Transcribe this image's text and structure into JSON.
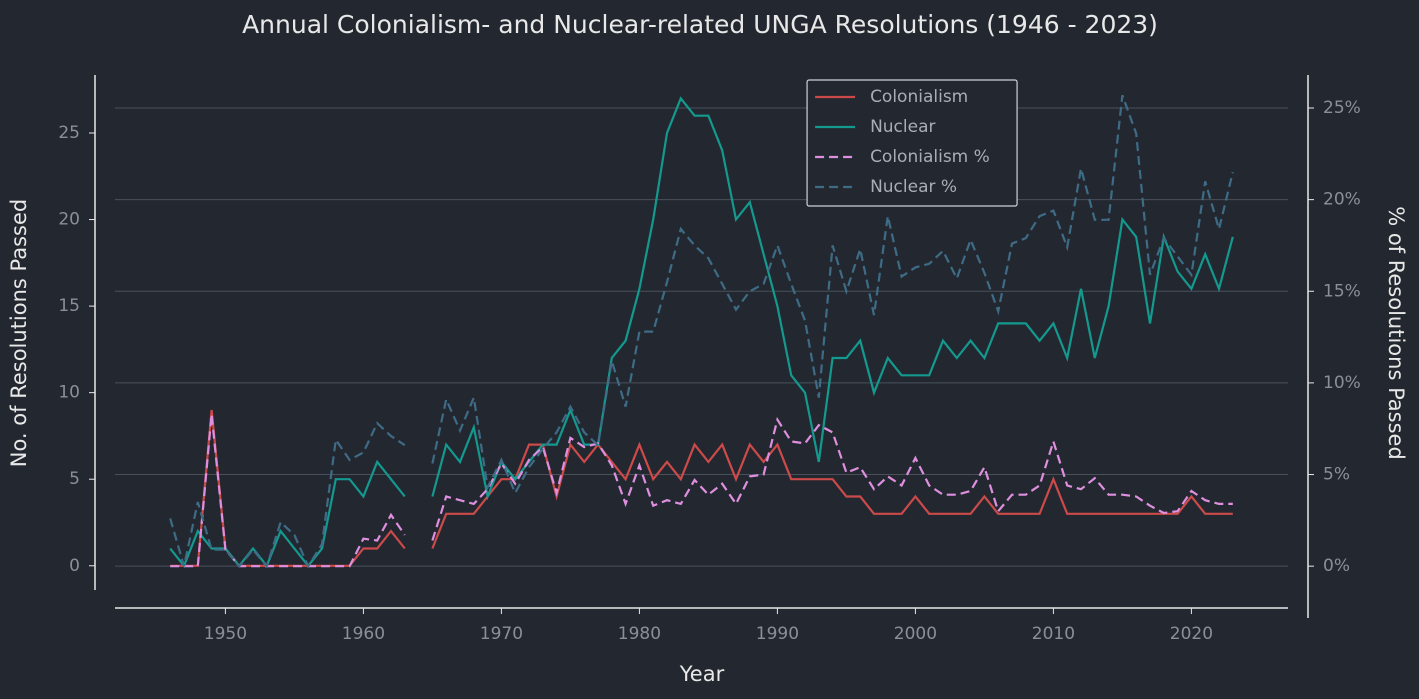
{
  "chart_data": {
    "type": "line",
    "title": "Annual Colonialism- and Nuclear-related UNGA Resolutions (1946 - 2023)",
    "x_label": "Year",
    "y_label": "No. of Resolutions Passed",
    "y2_label": "% of Resolutions Passed",
    "x": [
      1946,
      1947,
      1948,
      1949,
      1950,
      1951,
      1952,
      1953,
      1954,
      1955,
      1956,
      1957,
      1958,
      1959,
      1960,
      1961,
      1962,
      1963,
      1964,
      1965,
      1966,
      1967,
      1968,
      1969,
      1970,
      1971,
      1972,
      1973,
      1974,
      1975,
      1976,
      1977,
      1978,
      1979,
      1980,
      1981,
      1982,
      1983,
      1984,
      1985,
      1986,
      1987,
      1988,
      1989,
      1990,
      1991,
      1992,
      1993,
      1994,
      1995,
      1996,
      1997,
      1998,
      1999,
      2000,
      2001,
      2002,
      2003,
      2004,
      2005,
      2006,
      2007,
      2008,
      2009,
      2010,
      2011,
      2012,
      2013,
      2014,
      2015,
      2016,
      2017,
      2018,
      2019,
      2020,
      2021,
      2022,
      2023
    ],
    "xlim": [
      1942,
      2027
    ],
    "xticks": [
      1950,
      1960,
      1970,
      1980,
      1990,
      2000,
      2010,
      2020
    ],
    "ylim": [
      -1.4,
      28.35
    ],
    "yticks": [
      0,
      5,
      10,
      15,
      20,
      25
    ],
    "y2lim": [
      -1.3,
      26.8
    ],
    "y2ticks": [
      {
        "value": 0,
        "label": "0%"
      },
      {
        "value": 5,
        "label": "5%"
      },
      {
        "value": 10,
        "label": "10%"
      },
      {
        "value": 15,
        "label": "15%"
      },
      {
        "value": 20,
        "label": "20%"
      },
      {
        "value": 25,
        "label": "25%"
      }
    ],
    "grid": "y2",
    "legend": "upper center",
    "series": [
      {
        "name": "Colonialism",
        "color": "#cc4a4a",
        "style": "solid",
        "values": [
          0,
          0,
          0,
          9,
          1,
          0,
          0,
          0,
          0,
          0,
          0,
          0,
          0,
          0,
          1,
          1,
          2,
          1,
          null,
          1,
          3,
          3,
          3,
          4,
          5,
          5,
          7,
          7,
          4,
          7,
          6,
          7,
          6,
          5,
          7,
          5,
          6,
          5,
          7,
          6,
          7,
          5,
          7,
          6,
          7,
          5,
          5,
          5,
          5,
          4,
          4,
          3,
          3,
          3,
          4,
          3,
          3,
          3,
          3,
          4,
          3,
          3,
          3,
          3,
          5,
          3,
          3,
          3,
          3,
          3,
          3,
          3,
          3,
          3,
          4,
          3,
          3,
          3
        ]
      },
      {
        "name": "Nuclear",
        "color": "#14998f",
        "style": "solid",
        "values": [
          1,
          0,
          2,
          1,
          1,
          0,
          1,
          0,
          2,
          1,
          0,
          1,
          5,
          5,
          4,
          6,
          5,
          4,
          null,
          4,
          7,
          6,
          8,
          4,
          6,
          5,
          6,
          7,
          7,
          9,
          7,
          7,
          12,
          13,
          16,
          20,
          25,
          27,
          26,
          26,
          24,
          20,
          21,
          18,
          15,
          11,
          10,
          6,
          12,
          12,
          13,
          10,
          12,
          11,
          11,
          11,
          13,
          12,
          13,
          12,
          14,
          14,
          14,
          13,
          14,
          12,
          16,
          12,
          15,
          20,
          19,
          14,
          19,
          17,
          16,
          18,
          16,
          19
        ]
      },
      {
        "name": "Colonialism %",
        "color": "#df8fdf",
        "style": "dashed",
        "axis": "y2",
        "values": [
          0,
          0,
          0,
          8.3,
          0.9,
          0,
          0,
          0,
          0,
          0,
          0,
          0,
          0,
          0,
          1.5,
          1.4,
          2.8,
          1.7,
          null,
          1.4,
          3.8,
          3.6,
          3.4,
          4.2,
          5.6,
          4.5,
          5.8,
          6.5,
          4.0,
          7.0,
          6.5,
          6.7,
          5.5,
          3.4,
          5.5,
          3.3,
          3.6,
          3.4,
          4.7,
          3.9,
          4.5,
          3.4,
          4.9,
          5.0,
          8.0,
          6.8,
          6.7,
          7.7,
          7.3,
          5.1,
          5.4,
          4.2,
          4.9,
          4.4,
          5.9,
          4.4,
          3.9,
          3.9,
          4.1,
          5.4,
          3.0,
          3.9,
          3.9,
          4.4,
          6.8,
          4.4,
          4.2,
          4.8,
          3.9,
          3.9,
          3.8,
          3.3,
          2.9,
          3.0,
          4.1,
          3.6,
          3.4,
          3.4
        ]
      },
      {
        "name": "Nuclear %",
        "color": "#3e6b86",
        "style": "dashed",
        "axis": "y2",
        "values": [
          2.6,
          0,
          3.5,
          0.9,
          0.9,
          0,
          0.9,
          0,
          2.4,
          1.7,
          0,
          1.2,
          6.9,
          5.8,
          6.2,
          7.8,
          7.1,
          6.6,
          null,
          5.6,
          9.1,
          7.4,
          9.2,
          4.3,
          5.8,
          4.0,
          5.4,
          6.4,
          7.3,
          8.7,
          7.3,
          6.6,
          11.2,
          8.7,
          12.8,
          12.8,
          15.5,
          18.4,
          17.5,
          16.8,
          15.4,
          14.0,
          15.0,
          15.4,
          17.5,
          15.4,
          13.4,
          9.2,
          17.5,
          15.0,
          17.3,
          13.7,
          19.1,
          15.8,
          16.3,
          16.5,
          17.2,
          15.7,
          17.8,
          16.0,
          13.9,
          17.6,
          17.9,
          19.1,
          19.4,
          17.4,
          21.7,
          18.9,
          18.9,
          25.7,
          23.6,
          15.9,
          17.9,
          16.9,
          15.9,
          21.0,
          18.4,
          21.5
        ]
      }
    ]
  }
}
